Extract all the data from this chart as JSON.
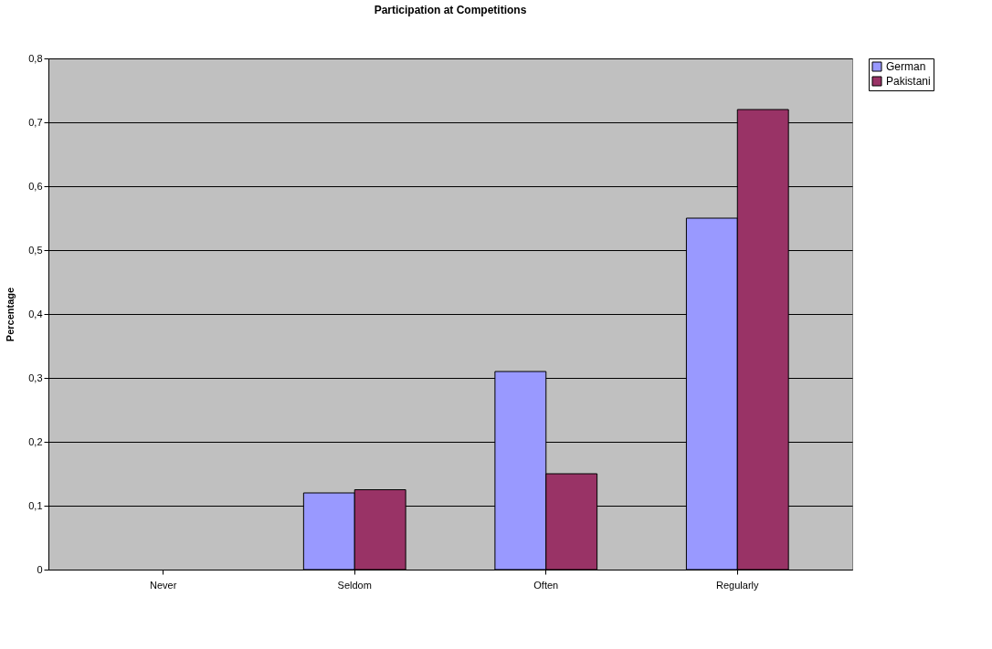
{
  "chart_data": {
    "type": "bar",
    "title": "Participation at Competitions",
    "ylabel": "Percentage",
    "categories": [
      "Never",
      "Seldom",
      "Often",
      "Regularly"
    ],
    "series": [
      {
        "name": "German",
        "color": "#9999ff",
        "values": [
          0,
          0.12,
          0.31,
          0.55
        ]
      },
      {
        "name": "Pakistani",
        "color": "#993366",
        "values": [
          0,
          0.125,
          0.15,
          0.72
        ]
      }
    ],
    "ylim": [
      0,
      0.8
    ],
    "yticks": [
      0,
      {
        "value": 0.1,
        "label": "0,1"
      },
      {
        "value": 0.2,
        "label": "0,2"
      },
      {
        "value": 0.3,
        "label": "0,3"
      },
      {
        "value": 0.4,
        "label": "0,4"
      },
      {
        "value": 0.5,
        "label": "0,5"
      },
      {
        "value": 0.6,
        "label": "0,6"
      },
      {
        "value": 0.7,
        "label": "0,7"
      },
      {
        "value": 0.8,
        "label": "0,8"
      }
    ],
    "grid": "y",
    "legend": "right"
  }
}
